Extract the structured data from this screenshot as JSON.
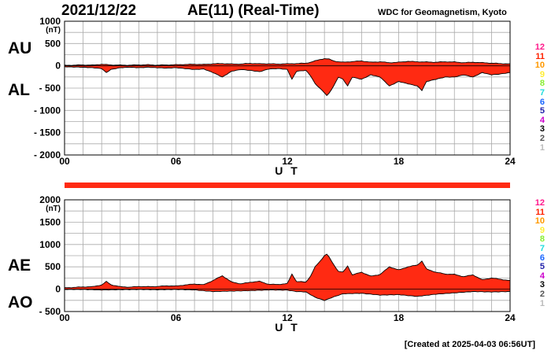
{
  "header": {
    "date": "2021/12/22",
    "title": "AE(11) (Real-Time)",
    "source": "WDC for Geomagnetism, Kyoto"
  },
  "footer": {
    "created": "[Created at 2025-04-03 06:56UT]"
  },
  "colors": {
    "fill": "#ff2a12",
    "grid": "#aaaaaa",
    "axis": "#000000"
  },
  "station_hours": [
    {
      "label": "12",
      "color": "#ff1a8c"
    },
    {
      "label": "11",
      "color": "#ff2200"
    },
    {
      "label": "10",
      "color": "#ff9900"
    },
    {
      "label": "9",
      "color": "#ffee33"
    },
    {
      "label": "8",
      "color": "#88ee33"
    },
    {
      "label": "7",
      "color": "#22dddd"
    },
    {
      "label": "6",
      "color": "#1a66ff"
    },
    {
      "label": "5",
      "color": "#2222aa"
    },
    {
      "label": "4",
      "color": "#cc00cc"
    },
    {
      "label": "3",
      "color": "#000000"
    },
    {
      "label": "2",
      "color": "#555555"
    },
    {
      "label": "1",
      "color": "#bbbbbb"
    }
  ],
  "chart_data": [
    {
      "type": "area",
      "panel": "AU/AL",
      "labels": [
        "AU",
        "AL"
      ],
      "unit": "(nT)",
      "xlabel": "U T",
      "xlim": [
        0,
        24
      ],
      "xticks": [
        "00",
        "06",
        "12",
        "18",
        "24"
      ],
      "ylim": [
        -2000,
        1000
      ],
      "yticks": [
        "1000",
        "500",
        "0",
        "- 500",
        "- 1000",
        "- 1500",
        "- 2000"
      ],
      "grid": true,
      "series": [
        {
          "name": "AU",
          "x": [
            0,
            0.5,
            1,
            1.5,
            2,
            2.5,
            3,
            3.5,
            4,
            4.5,
            5,
            5.5,
            6,
            6.5,
            7,
            7.5,
            8,
            8.5,
            9,
            9.5,
            10,
            10.5,
            11,
            11.5,
            12,
            12.5,
            13,
            13.25,
            13.5,
            13.75,
            14,
            14.25,
            14.5,
            14.75,
            15,
            15.5,
            16,
            16.5,
            17,
            17.5,
            18,
            18.5,
            19,
            19.5,
            20,
            20.5,
            21,
            21.5,
            22,
            22.5,
            23,
            23.5,
            24
          ],
          "values": [
            10,
            15,
            20,
            15,
            35,
            20,
            15,
            15,
            20,
            25,
            15,
            20,
            25,
            30,
            35,
            30,
            45,
            50,
            40,
            40,
            55,
            45,
            45,
            40,
            45,
            50,
            60,
            80,
            110,
            140,
            160,
            150,
            110,
            90,
            80,
            95,
            110,
            80,
            90,
            70,
            80,
            100,
            90,
            85,
            80,
            90,
            85,
            70,
            80,
            70,
            60,
            50,
            40
          ]
        },
        {
          "name": "AL",
          "x": [
            0,
            0.5,
            1,
            1.5,
            2,
            2.25,
            2.5,
            3,
            3.5,
            4,
            4.5,
            5,
            5.5,
            6,
            6.5,
            7,
            7.5,
            8,
            8.5,
            9,
            9.5,
            10,
            10.5,
            11,
            11.5,
            12,
            12.25,
            12.5,
            13,
            13.25,
            13.5,
            13.75,
            14,
            14.15,
            14.3,
            14.5,
            14.75,
            15,
            15.25,
            15.5,
            16,
            16.5,
            17,
            17.5,
            18,
            18.5,
            19,
            19.25,
            19.5,
            20,
            20.5,
            21,
            21.5,
            22,
            22.5,
            23,
            23.5,
            24
          ],
          "values": [
            -20,
            -25,
            -30,
            -40,
            -60,
            -150,
            -80,
            -40,
            -30,
            -40,
            -30,
            -40,
            -50,
            -40,
            -60,
            -80,
            -70,
            -150,
            -250,
            -120,
            -80,
            -100,
            -130,
            -70,
            -60,
            -80,
            -300,
            -120,
            -100,
            -220,
            -400,
            -500,
            -600,
            -680,
            -580,
            -450,
            -250,
            -300,
            -450,
            -250,
            -300,
            -200,
            -250,
            -450,
            -350,
            -400,
            -450,
            -550,
            -350,
            -300,
            -250,
            -250,
            -200,
            -250,
            -150,
            -200,
            -180,
            -150
          ]
        }
      ]
    },
    {
      "type": "area",
      "panel": "AE/AO",
      "labels": [
        "AE",
        "AO"
      ],
      "unit": "(nT)",
      "xlabel": "U T",
      "xlim": [
        0,
        24
      ],
      "xticks": [
        "00",
        "06",
        "12",
        "18",
        "24"
      ],
      "ylim": [
        -500,
        2000
      ],
      "yticks": [
        "2000",
        "1500",
        "1000",
        "500",
        "0",
        "- 500"
      ],
      "grid": true,
      "series": [
        {
          "name": "AE",
          "x": [
            0,
            0.5,
            1,
            1.5,
            2,
            2.25,
            2.5,
            3,
            3.5,
            4,
            4.5,
            5,
            5.5,
            6,
            6.5,
            7,
            7.5,
            8,
            8.5,
            9,
            9.5,
            10,
            10.5,
            11,
            11.5,
            12,
            12.25,
            12.5,
            13,
            13.25,
            13.5,
            13.75,
            14,
            14.15,
            14.3,
            14.5,
            14.75,
            15,
            15.25,
            15.5,
            16,
            16.5,
            17,
            17.5,
            18,
            18.5,
            19,
            19.25,
            19.5,
            20,
            20.5,
            21,
            21.5,
            22,
            22.5,
            23,
            23.5,
            24
          ],
          "values": [
            30,
            40,
            50,
            55,
            95,
            170,
            100,
            55,
            45,
            60,
            55,
            60,
            75,
            70,
            95,
            115,
            100,
            195,
            300,
            160,
            120,
            155,
            175,
            110,
            105,
            125,
            340,
            170,
            160,
            290,
            500,
            620,
            750,
            790,
            680,
            550,
            400,
            380,
            520,
            320,
            380,
            290,
            330,
            500,
            430,
            500,
            540,
            630,
            450,
            380,
            340,
            330,
            280,
            320,
            210,
            250,
            220,
            190
          ]
        },
        {
          "name": "AO",
          "x": [
            0,
            1,
            2,
            3,
            4,
            5,
            6,
            7,
            8,
            9,
            10,
            11,
            12,
            12.5,
            13,
            13.5,
            14,
            14.5,
            15,
            16,
            17,
            18,
            19,
            20,
            21,
            22,
            23,
            24
          ],
          "values": [
            -5,
            -5,
            -15,
            -10,
            -5,
            -10,
            -5,
            -15,
            -50,
            -40,
            -30,
            -15,
            -20,
            -50,
            -60,
            -180,
            -250,
            -170,
            -100,
            -90,
            -130,
            -120,
            -160,
            -110,
            -80,
            -50,
            -60,
            -50
          ]
        }
      ]
    }
  ]
}
